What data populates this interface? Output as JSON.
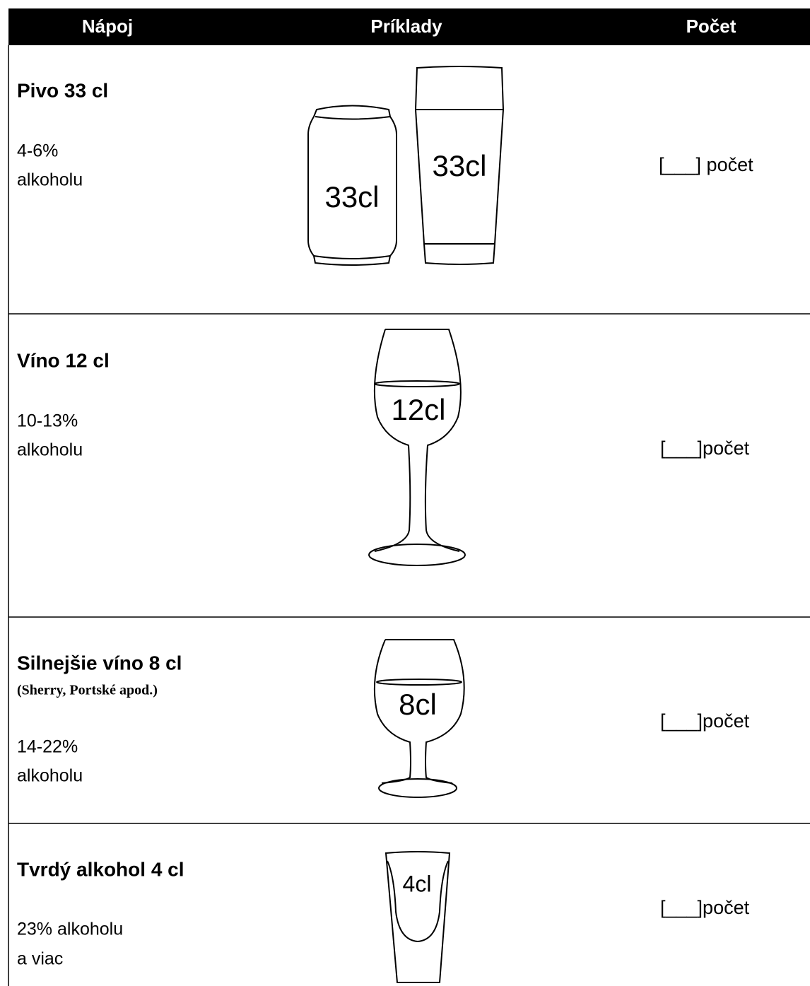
{
  "header": {
    "columns": [
      "Nápoj",
      "Príklady",
      "Počet"
    ]
  },
  "rows": [
    {
      "title": "Pivo 33 cl",
      "lines": [
        "4-6%",
        "alkoholu"
      ],
      "example_labels": [
        "33cl",
        "33cl"
      ],
      "count": "[___] počet"
    },
    {
      "title": "Víno 12 cl",
      "lines": [
        "10-13%",
        "alkoholu"
      ],
      "example_labels": [
        "12cl"
      ],
      "count": "[___]počet"
    },
    {
      "title": "Silnejšie víno 8 cl",
      "note": "(Sherry, Portské apod.)",
      "lines": [
        "14-22%",
        "alkoholu"
      ],
      "example_labels": [
        "8cl"
      ],
      "count": "[___]počet"
    },
    {
      "title": "Tvrdý alkohol 4 cl",
      "lines": [
        "23% alkoholu",
        "a viac"
      ],
      "example_labels": [
        "4cl"
      ],
      "count": "[___]počet"
    }
  ]
}
